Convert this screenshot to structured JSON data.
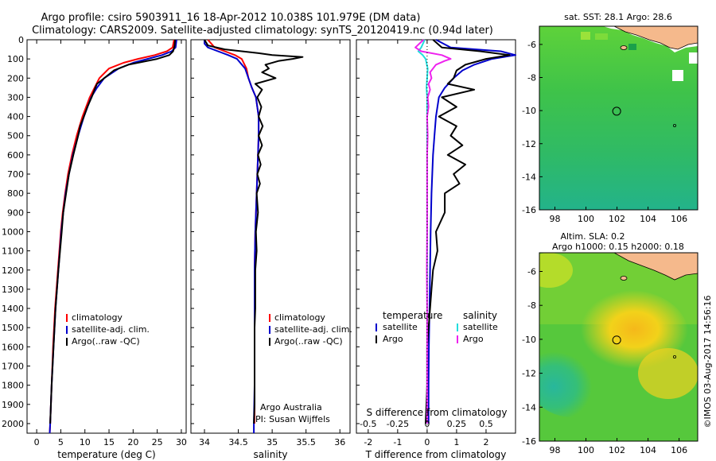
{
  "header": {
    "line1": "Argo profile: csiro 5903911_16 18-Apr-2012 10.038S 101.979E (DM data)",
    "line2": "Climatology: CARS2009. Satellite-adjusted climatology: synTS_20120419.nc (0.94d later)"
  },
  "side_text": "©IMOS 03-Aug-2017 14:56:16",
  "colors": {
    "climatology": "#ff0000",
    "satellite": "#0000cc",
    "argo": "#000000",
    "salinity_satellite": "#22dddd",
    "salinity_argo": "#ee22ee",
    "land": "#f5b98c",
    "sst_green": "#44c43a",
    "sla_yellow": "#f2cf1a"
  },
  "chart_data": [
    {
      "type": "line",
      "name": "temperature-panel",
      "xlabel": "temperature (deg C)",
      "xlim": [
        -2,
        31
      ],
      "ylim": [
        2050,
        0
      ],
      "xticks": [
        0,
        5,
        10,
        15,
        20,
        25,
        30
      ],
      "yticks": [
        0,
        100,
        200,
        300,
        400,
        500,
        600,
        700,
        800,
        900,
        1000,
        1100,
        1200,
        1300,
        1400,
        1500,
        1600,
        1700,
        1800,
        1900,
        2000
      ],
      "legend": [
        "climatology",
        "satellite-adj. clim.",
        "Argo(..raw -QC)"
      ],
      "legend_placement": "lower-center",
      "series": [
        {
          "name": "climatology",
          "color": "#ff0000",
          "y": [
            0,
            40,
            60,
            80,
            100,
            120,
            150,
            200,
            250,
            300,
            400,
            500,
            600,
            700,
            800,
            900,
            1000,
            1200,
            1400,
            1600,
            1800,
            2000,
            2050
          ],
          "x": [
            28.5,
            28.2,
            27.0,
            24.5,
            21.0,
            18.0,
            15.0,
            13.0,
            12.0,
            11.0,
            9.5,
            8.3,
            7.3,
            6.5,
            5.9,
            5.4,
            5.0,
            4.4,
            3.8,
            3.4,
            3.1,
            2.8,
            2.7
          ]
        },
        {
          "name": "satellite-adj. clim.",
          "color": "#0000cc",
          "y": [
            0,
            40,
            60,
            80,
            100,
            120,
            150,
            200,
            250,
            300,
            400,
            500,
            600,
            700,
            800,
            900,
            1000,
            1200,
            1400,
            1600,
            1800,
            2000,
            2050
          ],
          "x": [
            29.0,
            28.8,
            28.0,
            26.0,
            23.0,
            20.0,
            17.0,
            14.0,
            12.5,
            11.3,
            9.8,
            8.6,
            7.5,
            6.7,
            6.0,
            5.5,
            5.1,
            4.5,
            3.9,
            3.5,
            3.1,
            2.8,
            2.7
          ]
        },
        {
          "name": "Argo(..raw -QC)",
          "color": "#000000",
          "y": [
            0,
            30,
            60,
            80,
            100,
            130,
            160,
            200,
            230,
            260,
            300,
            350,
            400,
            450,
            500,
            600,
            700,
            800,
            900,
            1000,
            1200,
            1400,
            1600,
            1800,
            2000
          ],
          "x": [
            28.7,
            28.6,
            28.3,
            27.5,
            25.0,
            19.0,
            16.0,
            14.0,
            12.5,
            12.0,
            11.4,
            10.5,
            9.8,
            9.0,
            8.6,
            7.6,
            6.7,
            6.1,
            5.5,
            5.2,
            4.5,
            3.9,
            3.5,
            3.1,
            2.8
          ]
        }
      ]
    },
    {
      "type": "line",
      "name": "salinity-panel",
      "xlabel": "salinity",
      "xlim": [
        33.8,
        36.15
      ],
      "ylim": [
        2050,
        0
      ],
      "xticks": [
        34,
        34.5,
        35,
        35.5,
        36
      ],
      "yticks": [
        0,
        100,
        200,
        300,
        400,
        500,
        600,
        700,
        800,
        900,
        1000,
        1100,
        1200,
        1300,
        1400,
        1500,
        1600,
        1700,
        1800,
        1900,
        2000
      ],
      "legend": [
        "climatology",
        "satellite-adj. clim.",
        "Argo(..raw -QC)"
      ],
      "legend_placement": "lower-right",
      "annotation": [
        "Argo Australia",
        "PI: Susan Wijffels"
      ],
      "series": [
        {
          "name": "climatology",
          "color": "#ff0000",
          "y": [
            0,
            40,
            60,
            80,
            100,
            150,
            200,
            250,
            300,
            400,
            500,
            600,
            800,
            1000,
            1200,
            1400,
            1600,
            1800,
            2000
          ],
          "x": [
            34.05,
            34.15,
            34.3,
            34.45,
            34.55,
            34.62,
            34.65,
            34.7,
            34.76,
            34.8,
            34.8,
            34.79,
            34.77,
            34.75,
            34.74,
            34.74,
            34.74,
            34.74,
            34.74
          ]
        },
        {
          "name": "satellite-adj. clim.",
          "color": "#0000cc",
          "y": [
            0,
            20,
            40,
            60,
            80,
            100,
            150,
            200,
            250,
            300,
            400,
            500,
            600,
            800,
            1000,
            1200,
            1400,
            1600,
            1800,
            2000,
            2050
          ],
          "x": [
            34.0,
            34.0,
            34.05,
            34.2,
            34.35,
            34.48,
            34.6,
            34.65,
            34.7,
            34.76,
            34.8,
            34.8,
            34.79,
            34.77,
            34.75,
            34.74,
            34.74,
            34.74,
            34.74,
            34.73,
            34.73
          ]
        },
        {
          "name": "Argo(..raw -QC)",
          "color": "#000000",
          "y": [
            0,
            30,
            50,
            70,
            80,
            90,
            100,
            110,
            130,
            150,
            170,
            200,
            230,
            260,
            300,
            350,
            400,
            450,
            500,
            550,
            600,
            650,
            700,
            750,
            800,
            900,
            1000,
            1100,
            1200,
            1300,
            1400,
            1500,
            1600,
            1700,
            1800,
            1900,
            2000
          ],
          "x": [
            34.0,
            34.05,
            34.3,
            34.8,
            35.0,
            35.45,
            35.3,
            35.1,
            34.9,
            34.95,
            34.85,
            35.05,
            34.75,
            34.85,
            34.78,
            34.84,
            34.8,
            34.86,
            34.8,
            34.85,
            34.79,
            34.83,
            34.78,
            34.82,
            34.77,
            34.79,
            34.76,
            34.77,
            34.75,
            34.75,
            34.75,
            34.74,
            34.74,
            34.74,
            34.74,
            34.74,
            34.73
          ]
        }
      ]
    },
    {
      "type": "line",
      "name": "difference-panel",
      "xlabel": "T difference from climatology",
      "xlabel_top": "S difference from climatology",
      "xlim": [
        -2.4,
        3.0
      ],
      "ylim": [
        2050,
        0
      ],
      "xticks": [
        -2,
        -1,
        0,
        1,
        2
      ],
      "s_ticks": [
        -0.5,
        -0.25,
        0,
        0.25,
        0.5
      ],
      "s_tick_labels": [
        "-0.5",
        "-0.25",
        "0",
        "0.25",
        "0.5"
      ],
      "yticks": [
        0,
        100,
        200,
        300,
        400,
        500,
        600,
        700,
        800,
        900,
        1000,
        1100,
        1200,
        1300,
        1400,
        1500,
        1600,
        1700,
        1800,
        1900,
        2000
      ],
      "legend_temperature": {
        "title": "temperature",
        "entries": [
          "satellite",
          "Argo"
        ]
      },
      "legend_salinity": {
        "title": "salinity",
        "entries": [
          "satellite",
          "Argo"
        ]
      },
      "series": [
        {
          "name": "temperature satellite",
          "color": "#0000cc",
          "y": [
            0,
            40,
            60,
            80,
            100,
            130,
            160,
            200,
            250,
            300,
            400,
            500,
            600,
            800,
            1000,
            1200,
            1400,
            1600,
            1800,
            2000
          ],
          "x": [
            0.3,
            0.8,
            2.5,
            3.0,
            2.2,
            1.6,
            1.2,
            0.9,
            0.6,
            0.4,
            0.3,
            0.25,
            0.2,
            0.15,
            0.12,
            0.1,
            0.08,
            0.06,
            0.05,
            0.05
          ]
        },
        {
          "name": "temperature Argo",
          "color": "#000000",
          "y": [
            0,
            40,
            60,
            80,
            100,
            130,
            160,
            200,
            230,
            260,
            300,
            350,
            400,
            450,
            500,
            550,
            600,
            650,
            700,
            750,
            800,
            900,
            1000,
            1100,
            1200,
            1300,
            1400,
            1500,
            1600,
            1800,
            2000
          ],
          "x": [
            0.2,
            0.5,
            1.8,
            2.8,
            2.0,
            1.3,
            1.0,
            0.9,
            0.7,
            1.6,
            0.5,
            1.0,
            0.4,
            1.0,
            0.8,
            1.2,
            0.7,
            1.3,
            0.9,
            1.1,
            0.6,
            0.6,
            0.3,
            0.35,
            0.2,
            0.15,
            0.1,
            0.05,
            0.0,
            0.0,
            -0.05
          ]
        },
        {
          "name": "salinity satellite",
          "color": "#22dddd",
          "y": [
            0,
            40,
            60,
            80,
            100,
            150,
            200,
            250,
            300,
            400,
            600,
            800,
            1000,
            1200,
            1400,
            1600,
            1800,
            2000
          ],
          "x": [
            -0.08,
            -0.2,
            -0.3,
            -0.15,
            -0.05,
            0.02,
            0.0,
            -0.02,
            0.0,
            0.0,
            0.0,
            0.0,
            0.0,
            0.0,
            0.0,
            0.0,
            0.0,
            0.0
          ]
        },
        {
          "name": "salinity Argo",
          "color": "#ee22ee",
          "y": [
            0,
            40,
            60,
            80,
            100,
            110,
            130,
            150,
            170,
            200,
            230,
            260,
            300,
            350,
            400,
            500,
            600,
            800,
            1000,
            1200,
            1400,
            1600,
            1800,
            2000
          ],
          "x": [
            -0.12,
            -0.4,
            -0.2,
            0.5,
            0.8,
            0.6,
            0.3,
            0.2,
            0.1,
            0.15,
            0.05,
            0.1,
            0.02,
            0.05,
            0.0,
            0.02,
            0.0,
            0.0,
            0.0,
            -0.01,
            0.0,
            0.0,
            0.0,
            0.0
          ]
        }
      ]
    },
    {
      "type": "heatmap",
      "name": "sst-map",
      "title": "sat. SST: 28.1  Argo: 28.6",
      "xlim": [
        97,
        107.2
      ],
      "ylim": [
        -16,
        -4.9
      ],
      "xticks": [
        98,
        100,
        102,
        104,
        106
      ],
      "yticks": [
        -6,
        -8,
        -10,
        -12,
        -14,
        -16
      ],
      "profile_location": {
        "lon": 101.979,
        "lat": -10.038
      }
    },
    {
      "type": "heatmap",
      "name": "sla-map",
      "title": "Altim. SLA: 0.2",
      "subtitle": "Argo h1000: 0.15 h2000: 0.18",
      "xlim": [
        97,
        107.2
      ],
      "ylim": [
        -16,
        -4.9
      ],
      "xticks": [
        98,
        100,
        102,
        104,
        106
      ],
      "yticks": [
        -6,
        -8,
        -10,
        -12,
        -14,
        -16
      ],
      "profile_location": {
        "lon": 101.979,
        "lat": -10.038
      }
    }
  ]
}
